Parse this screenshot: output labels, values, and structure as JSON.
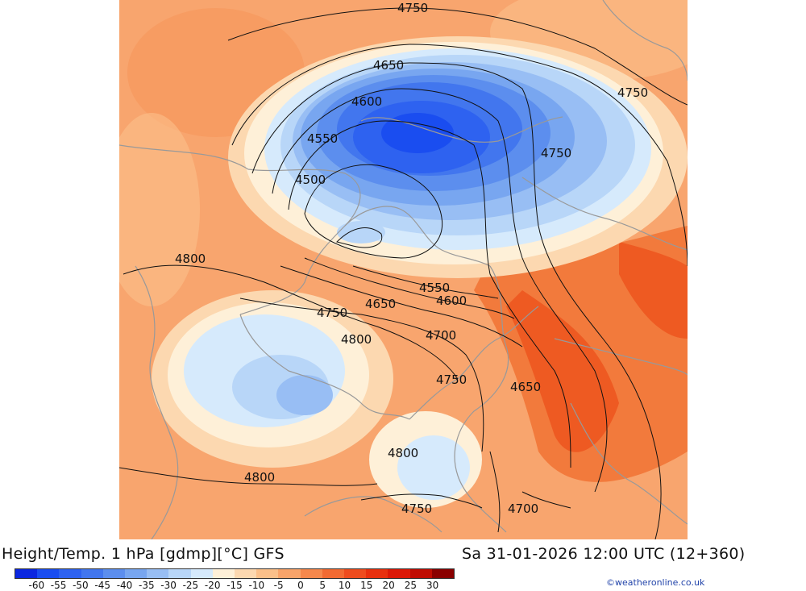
{
  "map": {
    "contour_labels": [
      "4750",
      "4650",
      "4600",
      "4550",
      "4500",
      "4800",
      "4550",
      "4600",
      "4650",
      "4750",
      "4700",
      "4800",
      "4750",
      "4650",
      "4800",
      "4800",
      "4750",
      "4700",
      "4750",
      "4750"
    ]
  },
  "footer": {
    "title": "Height/Temp. 1 hPa [gdmp][°C] GFS",
    "valid_time": "Sa 31-01-2026 12:00 UTC (12+360)",
    "credit": "©weatheronline.co.uk"
  },
  "colorbar": {
    "colors": [
      "#0b27e0",
      "#1a4df0",
      "#2e62f0",
      "#4276ee",
      "#5c8eee",
      "#78a6f0",
      "#98bef4",
      "#b8d6f8",
      "#d6eafc",
      "#fef0d8",
      "#fcd8b0",
      "#fbc08a",
      "#f9a46a",
      "#f6884c",
      "#f26a32",
      "#ee4c1e",
      "#e8300e",
      "#dc1806",
      "#c00c02",
      "#8a0000"
    ],
    "tick_labels": [
      "-60",
      "-55",
      "-50",
      "-45",
      "-40",
      "-35",
      "-30",
      "-25",
      "-20",
      "-15",
      "-10",
      "-5",
      "0",
      "5",
      "10",
      "15",
      "20",
      "25",
      "30"
    ]
  }
}
